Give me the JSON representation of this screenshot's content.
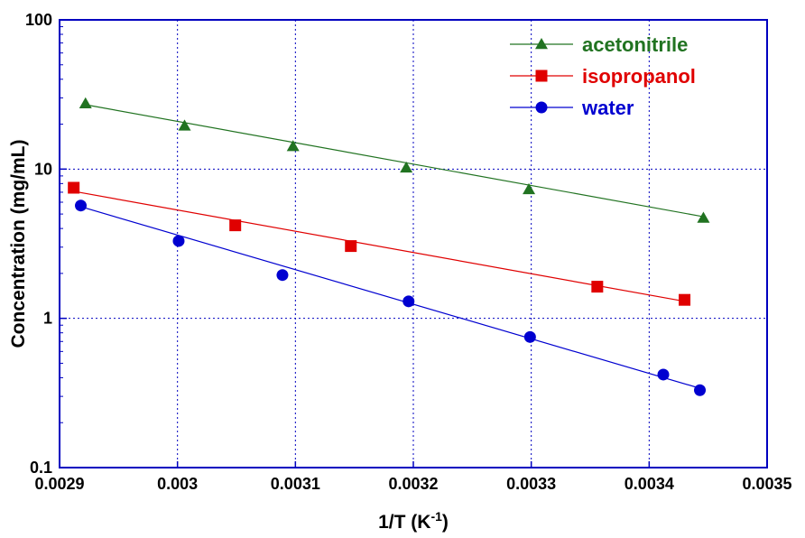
{
  "chart_data": {
    "type": "scatter",
    "xlabel_main": "1/T (K",
    "xlabel_sup": "-1",
    "xlabel_end": ")",
    "ylabel": "Concentration (mg/mL)",
    "x_scale": "linear",
    "y_scale": "log",
    "xlim": [
      0.0029,
      0.0035
    ],
    "ylim": [
      0.1,
      100
    ],
    "x_ticks": [
      "0.0029",
      "0.003",
      "0.0031",
      "0.0032",
      "0.0033",
      "0.0034",
      "0.0035"
    ],
    "y_ticks": [
      "0.1",
      "1",
      "10",
      "100"
    ],
    "grid": true,
    "legend_position": "top-right",
    "series": [
      {
        "name": "acetonitrile",
        "color": "#217321",
        "marker": "triangle",
        "x": [
          0.002922,
          0.003006,
          0.003098,
          0.003194,
          0.003298,
          0.003446
        ],
        "y": [
          27.5,
          19.5,
          14.2,
          10.2,
          7.3,
          4.7
        ],
        "fit": {
          "x": [
            0.002922,
            0.003446
          ],
          "y": [
            27.0,
            4.8
          ]
        }
      },
      {
        "name": "isopropanol",
        "color": "#e00000",
        "marker": "square",
        "x": [
          0.002912,
          0.003049,
          0.003147,
          0.003356,
          0.00343
        ],
        "y": [
          7.5,
          4.2,
          3.05,
          1.63,
          1.33
        ],
        "fit": {
          "x": [
            0.002912,
            0.00343
          ],
          "y": [
            7.1,
            1.3
          ]
        }
      },
      {
        "name": "water",
        "color": "#0000d0",
        "marker": "circle",
        "x": [
          0.002918,
          0.003001,
          0.003089,
          0.003196,
          0.003299,
          0.003412,
          0.003443
        ],
        "y": [
          5.7,
          3.3,
          1.95,
          1.3,
          0.75,
          0.42,
          0.33
        ],
        "fit": {
          "x": [
            0.002918,
            0.003443
          ],
          "y": [
            5.6,
            0.34
          ]
        }
      }
    ]
  }
}
